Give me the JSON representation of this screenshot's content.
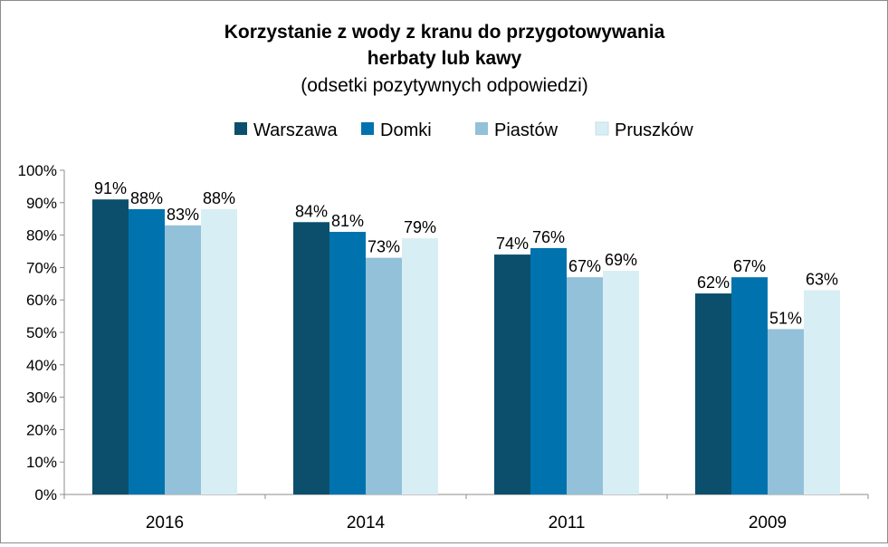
{
  "chart_data": {
    "type": "bar",
    "title_line1": "Korzystanie z wody z kranu do przygotowywania",
    "title_line2": "herbaty lub kawy",
    "subtitle": "(odsetki pozytywnych odpowiedzi)",
    "categories": [
      "2016",
      "2014",
      "2011",
      "2009"
    ],
    "series": [
      {
        "name": "Warszawa",
        "color": "#0b4f6c",
        "values": [
          91,
          84,
          74,
          62
        ]
      },
      {
        "name": "Domki",
        "color": "#0073ae",
        "values": [
          88,
          81,
          76,
          67
        ]
      },
      {
        "name": "Piastów",
        "color": "#92c1d9",
        "values": [
          83,
          73,
          67,
          51
        ]
      },
      {
        "name": "Pruszków",
        "color": "#d8eef5",
        "values": [
          88,
          79,
          69,
          63
        ]
      }
    ],
    "ylim": [
      0,
      100
    ],
    "yticks": [
      0,
      10,
      20,
      30,
      40,
      50,
      60,
      70,
      80,
      90,
      100
    ],
    "ytick_suffix": "%",
    "value_suffix": "%",
    "legend_position": "top",
    "grid": false
  }
}
